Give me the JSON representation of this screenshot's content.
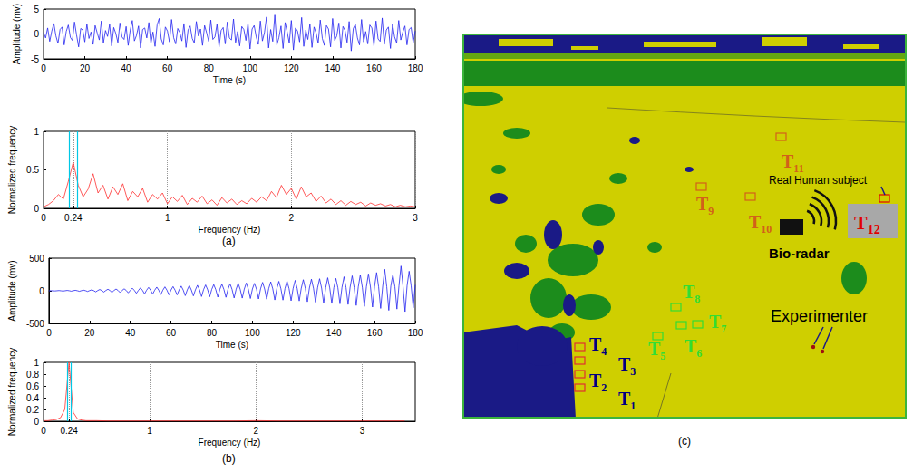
{
  "chart_data": [
    {
      "type": "line",
      "xlabel": "Time (s)",
      "ylabel": "Amplitude (mv)",
      "color": "#2323f0",
      "x": [
        0,
        1,
        2,
        3,
        4,
        5,
        6,
        7,
        8,
        9,
        10,
        11,
        12,
        13,
        14,
        15,
        16,
        17,
        18,
        19,
        20,
        21,
        22,
        23,
        24,
        25,
        26,
        27,
        28,
        29,
        30,
        31,
        32,
        33,
        34,
        35,
        36,
        37,
        38,
        39,
        40,
        41,
        42,
        43,
        44,
        45,
        46,
        47,
        48,
        49,
        50,
        51,
        52,
        53,
        54,
        55,
        56,
        57,
        58,
        59,
        60,
        61,
        62,
        63,
        64,
        65,
        66,
        67,
        68,
        69,
        70,
        71,
        72,
        73,
        74,
        75,
        76,
        77,
        78,
        79,
        80,
        81,
        82,
        83,
        84,
        85,
        86,
        87,
        88,
        89,
        90,
        91,
        92,
        93,
        94,
        95,
        96,
        97,
        98,
        99,
        100,
        101,
        102,
        103,
        104,
        105,
        106,
        107,
        108,
        109,
        110,
        111,
        112,
        113,
        114,
        115,
        116,
        117,
        118,
        119,
        120,
        121,
        122,
        123,
        124,
        125,
        126,
        127,
        128,
        129,
        130,
        131,
        132,
        133,
        134,
        135,
        136,
        137,
        138,
        139,
        140,
        141,
        142,
        143,
        144,
        145,
        146,
        147,
        148,
        149,
        150,
        151,
        152,
        153,
        154,
        155,
        156,
        157,
        158,
        159,
        160,
        161,
        162,
        163,
        164,
        165,
        166,
        167,
        168,
        169,
        170,
        171,
        172,
        173,
        174,
        175,
        176,
        177,
        178,
        179,
        180
      ],
      "values": [
        0.3,
        -0.8,
        1.2,
        -1.5,
        0.6,
        2.1,
        -0.4,
        -1.9,
        0.9,
        1.4,
        -2.2,
        0.5,
        1.8,
        -0.7,
        -1.3,
        2.4,
        -0.2,
        -2.6,
        1.1,
        0.8,
        -1.6,
        2.0,
        -0.9,
        0.4,
        -2.1,
        1.7,
        0.2,
        -1.2,
        2.6,
        -1.8,
        0.7,
        -0.5,
        1.9,
        -2.4,
        1.3,
        0.1,
        -1.7,
        2.2,
        -0.6,
        -1.1,
        1.5,
        -2.3,
        0.8,
        2.7,
        -1.4,
        -0.3,
        1.6,
        -2.8,
        0.9,
        1.2,
        -0.8,
        2.3,
        -1.9,
        0.4,
        -2.5,
        1.8,
        3.1,
        -1.0,
        -2.2,
        1.4,
        0.6,
        -1.6,
        2.9,
        -0.7,
        -2.0,
        1.1,
        0.3,
        -1.4,
        2.1,
        -2.7,
        0.8,
        1.6,
        -0.9,
        -1.8,
        2.5,
        -0.4,
        1.0,
        -2.3,
        1.7,
        0.2,
        -1.5,
        2.8,
        -1.1,
        -0.6,
        1.9,
        -2.6,
        0.7,
        1.3,
        -2.0,
        2.4,
        -0.8,
        -1.2,
        3.0,
        -1.7,
        0.5,
        -2.4,
        1.5,
        0.9,
        -1.3,
        2.2,
        -3.0,
        1.0,
        1.7,
        -0.6,
        -2.1,
        2.6,
        -1.4,
        0.3,
        3.4,
        -2.8,
        0.9,
        -1.5,
        3.8,
        -2.2,
        -0.7,
        1.6,
        -2.9,
        2.3,
        0.4,
        -1.8,
        2.7,
        -3.2,
        1.2,
        0.6,
        -1.6,
        3.3,
        -2.5,
        0.8,
        -1.1,
        2.0,
        -2.7,
        1.4,
        0.2,
        -1.9,
        2.8,
        -0.9,
        -2.3,
        1.7,
        1.0,
        -2.6,
        3.1,
        -1.3,
        -0.4,
        2.2,
        -2.8,
        1.5,
        0.7,
        -1.7,
        2.5,
        -3.4,
        1.1,
        1.9,
        -0.8,
        -2.2,
        2.9,
        -1.6,
        0.5,
        -2.0,
        1.8,
        1.2,
        -2.4,
        2.6,
        -1.0,
        -1.5,
        3.2,
        -2.1,
        0.8,
        1.4,
        -2.9,
        2.0,
        -0.6,
        -1.8,
        2.7,
        -1.2,
        0.4,
        1.6,
        -2.2,
        0.9,
        1.3,
        -1.7,
        0.6
      ],
      "xlim": [
        0,
        180
      ],
      "xticks": [
        0,
        20,
        40,
        60,
        80,
        100,
        120,
        140,
        160,
        180
      ],
      "ylim": [
        -5,
        5
      ],
      "yticks": [
        -5,
        0,
        5
      ]
    },
    {
      "type": "line",
      "xlabel": "Frequency (Hz)",
      "ylabel": "Normalized frequency",
      "color": "#ff3030",
      "grid": "x",
      "x": [
        0,
        0.04,
        0.08,
        0.12,
        0.16,
        0.2,
        0.24,
        0.28,
        0.32,
        0.36,
        0.4,
        0.44,
        0.48,
        0.52,
        0.56,
        0.6,
        0.64,
        0.68,
        0.72,
        0.76,
        0.8,
        0.84,
        0.88,
        0.92,
        0.96,
        1,
        1.04,
        1.08,
        1.12,
        1.16,
        1.2,
        1.24,
        1.28,
        1.32,
        1.36,
        1.4,
        1.44,
        1.48,
        1.52,
        1.56,
        1.6,
        1.64,
        1.68,
        1.72,
        1.76,
        1.8,
        1.84,
        1.88,
        1.92,
        1.96,
        2,
        2.04,
        2.08,
        2.12,
        2.16,
        2.2,
        2.24,
        2.28,
        2.32,
        2.36,
        2.4,
        2.44,
        2.48,
        2.52,
        2.56,
        2.6,
        2.64,
        2.68,
        2.72,
        2.76,
        2.8,
        2.84,
        2.88,
        2.92,
        2.96,
        3
      ],
      "values": [
        0.02,
        0.05,
        0.1,
        0.18,
        0.12,
        0.35,
        0.6,
        0.3,
        0.15,
        0.25,
        0.45,
        0.2,
        0.3,
        0.12,
        0.28,
        0.18,
        0.32,
        0.1,
        0.22,
        0.15,
        0.26,
        0.08,
        0.18,
        0.12,
        0.2,
        0.06,
        0.15,
        0.09,
        0.17,
        0.05,
        0.13,
        0.08,
        0.16,
        0.06,
        0.11,
        0.04,
        0.14,
        0.07,
        0.12,
        0.05,
        0.1,
        0.06,
        0.13,
        0.08,
        0.15,
        0.1,
        0.22,
        0.14,
        0.3,
        0.18,
        0.26,
        0.12,
        0.28,
        0.15,
        0.2,
        0.09,
        0.16,
        0.07,
        0.12,
        0.05,
        0.1,
        0.04,
        0.09,
        0.05,
        0.08,
        0.03,
        0.07,
        0.04,
        0.06,
        0.03,
        0.05,
        0.02,
        0.04,
        0.02,
        0.03,
        0.02
      ],
      "vlines": {
        "values": [
          0.21,
          0.27
        ],
        "color": "#00c8e6"
      },
      "xlim": [
        0,
        3
      ],
      "xticks": [
        0,
        0.24,
        1,
        2,
        3
      ],
      "ylim": [
        0,
        1
      ],
      "yticks": [
        0,
        0.5,
        1
      ]
    },
    {
      "type": "line",
      "xlabel": "Time (s)",
      "ylabel": "Amplitude (mv)",
      "color": "#2323f0",
      "x": [
        0,
        1,
        2,
        3,
        4,
        5,
        6,
        7,
        8,
        9,
        10,
        11,
        12,
        13,
        14,
        15,
        16,
        17,
        18,
        19,
        20,
        21,
        22,
        23,
        24,
        25,
        26,
        27,
        28,
        29,
        30,
        31,
        32,
        33,
        34,
        35,
        36,
        37,
        38,
        39,
        40,
        41,
        42,
        43,
        44,
        45,
        46,
        47,
        48,
        49,
        50,
        51,
        52,
        53,
        54,
        55,
        56,
        57,
        58,
        59,
        60,
        61,
        62,
        63,
        64,
        65,
        66,
        67,
        68,
        69,
        70,
        71,
        72,
        73,
        74,
        75,
        76,
        77,
        78,
        79,
        80,
        81,
        82,
        83,
        84,
        85,
        86,
        87,
        88,
        89,
        90,
        91,
        92,
        93,
        94,
        95,
        96,
        97,
        98,
        99,
        100,
        101,
        102,
        103,
        104,
        105,
        106,
        107,
        108,
        109,
        110,
        111,
        112,
        113,
        114,
        115,
        116,
        117,
        118,
        119,
        120,
        121,
        122,
        123,
        124,
        125,
        126,
        127,
        128,
        129,
        130,
        131,
        132,
        133,
        134,
        135,
        136,
        137,
        138,
        139,
        140,
        141,
        142,
        143,
        144,
        145,
        146,
        147,
        148,
        149,
        150,
        151,
        152,
        153,
        154,
        155,
        156,
        157,
        158,
        159,
        160,
        161,
        162,
        163,
        164,
        165,
        166,
        167,
        168,
        169,
        170,
        171,
        172,
        173,
        174,
        175,
        176,
        177,
        178,
        179,
        180
      ],
      "values": [
        0,
        2,
        0,
        -2,
        1,
        4,
        0,
        -4,
        1,
        6,
        1,
        -6,
        2,
        8,
        1,
        -8,
        2,
        10,
        2,
        -10,
        3,
        15,
        3,
        -16,
        4,
        20,
        3,
        -19,
        5,
        24,
        4,
        -25,
        5,
        27,
        5,
        -28,
        6,
        30,
        6,
        -32,
        7,
        40,
        6,
        -38,
        8,
        45,
        7,
        -47,
        9,
        52,
        8,
        -50,
        10,
        56,
        9,
        -58,
        10,
        60,
        10,
        -62,
        12,
        65,
        10,
        -63,
        14,
        72,
        12,
        -75,
        15,
        80,
        13,
        -78,
        16,
        85,
        15,
        -88,
        18,
        90,
        16,
        -92,
        20,
        95,
        18,
        -97,
        22,
        102,
        20,
        -100,
        24,
        108,
        21,
        -110,
        25,
        115,
        23,
        -112,
        26,
        120,
        24,
        -118,
        28,
        115,
        25,
        -125,
        30,
        130,
        27,
        -128,
        32,
        138,
        30,
        -140,
        34,
        145,
        31,
        -142,
        35,
        150,
        33,
        -152,
        38,
        160,
        35,
        -155,
        40,
        170,
        37,
        -168,
        42,
        178,
        39,
        -175,
        44,
        185,
        41,
        -190,
        46,
        200,
        43,
        -195,
        48,
        190,
        45,
        -200,
        52,
        215,
        48,
        -210,
        55,
        230,
        50,
        -225,
        58,
        245,
        53,
        -240,
        60,
        260,
        56,
        -250,
        65,
        280,
        60,
        -270,
        70,
        330,
        62,
        -300,
        72,
        250,
        65,
        -280,
        75,
        380,
        70,
        -320,
        80,
        300,
        72,
        -260,
        90
      ],
      "xlim": [
        0,
        180
      ],
      "xticks": [
        0,
        20,
        40,
        60,
        80,
        100,
        120,
        140,
        160,
        180
      ],
      "ylim": [
        -500,
        500
      ],
      "yticks": [
        -500,
        0,
        500
      ]
    },
    {
      "type": "line",
      "xlabel": "Frequency (Hz)",
      "ylabel": "Normalized frequency",
      "color": "#ff3030",
      "grid": "x",
      "x": [
        0,
        0.04,
        0.08,
        0.12,
        0.16,
        0.2,
        0.24,
        0.28,
        0.32,
        0.36,
        0.4,
        0.5,
        0.6,
        0.8,
        1,
        1.2,
        1.4,
        1.6,
        1.8,
        2,
        2.2,
        2.4,
        2.6,
        2.8,
        3,
        3.2,
        3.4
      ],
      "values": [
        0.01,
        0.01,
        0.02,
        0.03,
        0.06,
        0.2,
        1,
        0.15,
        0.04,
        0.02,
        0.01,
        0.01,
        0.005,
        0.005,
        0.005,
        0.005,
        0.005,
        0.005,
        0.005,
        0.01,
        0.005,
        0.005,
        0.005,
        0.005,
        0.005,
        0.005,
        0.005
      ],
      "vlines": {
        "values": [
          0.22,
          0.26
        ],
        "color": "#00c8e6"
      },
      "xlim": [
        0,
        3.5
      ],
      "xticks": [
        0,
        0.24,
        1,
        2,
        3
      ],
      "ylim": [
        0,
        1
      ],
      "yticks": [
        0,
        0.2,
        0.4,
        0.6,
        0.8,
        1
      ]
    }
  ],
  "panel_labels": [
    "(a)",
    "(b)",
    "(c)"
  ],
  "scene": {
    "targets": [
      {
        "label": "T1",
        "color": "#00007f"
      },
      {
        "label": "T2",
        "color": "#00007f"
      },
      {
        "label": "T3",
        "color": "#00007f"
      },
      {
        "label": "T4",
        "color": "#00007f"
      },
      {
        "label": "T5",
        "color": "#33dd33"
      },
      {
        "label": "T6",
        "color": "#33dd33"
      },
      {
        "label": "T7",
        "color": "#33dd33"
      },
      {
        "label": "T8",
        "color": "#33dd33"
      },
      {
        "label": "T9",
        "color": "#d2601a"
      },
      {
        "label": "T10",
        "color": "#d2601a"
      },
      {
        "label": "T11",
        "color": "#d2601a"
      },
      {
        "label": "T12",
        "color": "#e00000"
      }
    ],
    "subject": "Real Human subject",
    "radar": "Bio-radar",
    "experimenter": "Experimenter"
  }
}
